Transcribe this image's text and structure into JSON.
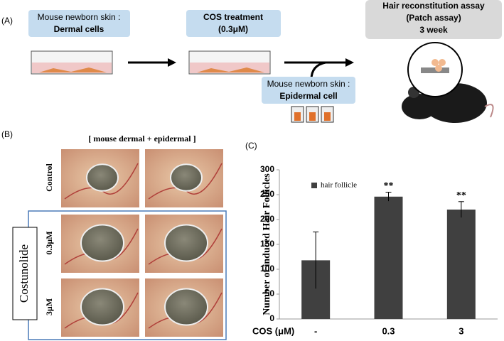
{
  "panels": {
    "a": "(A)",
    "b": "(B)",
    "c": "(C)"
  },
  "scheme": {
    "dermal": {
      "line1": "Mouse newborn skin :",
      "line2": "Dermal cells"
    },
    "treatment": {
      "line1": "COS treatment",
      "line2": "(0.3μM)"
    },
    "assay": {
      "line1": "Hair reconstitution assay",
      "line2": "(Patch assay)",
      "line3": "3 week"
    },
    "epidermal": {
      "line1": "Mouse newborn skin :",
      "line2": "Epidermal cell"
    }
  },
  "photos": {
    "title": "[ mouse dermal + epidermal ]",
    "rows": [
      "Control",
      "0.3μM",
      "3μM"
    ],
    "group": "Costunolide"
  },
  "chart_data": {
    "type": "bar",
    "categories": [
      "-",
      "0.3",
      "3"
    ],
    "series": [
      {
        "name": "hair follicle",
        "color": "#404040",
        "values": [
          118,
          246,
          220
        ],
        "errors": [
          57,
          9,
          16
        ]
      }
    ],
    "annotations": [
      {
        "text": "**",
        "category": "0.3"
      },
      {
        "text": "**",
        "category": "3"
      }
    ],
    "x_label": "COS (μM)",
    "y_label": "Number of induced Hair Follicles",
    "ylim": [
      0,
      300
    ],
    "yticks": [
      0,
      50,
      100,
      150,
      200,
      250,
      300
    ],
    "legend": "upper-left"
  }
}
